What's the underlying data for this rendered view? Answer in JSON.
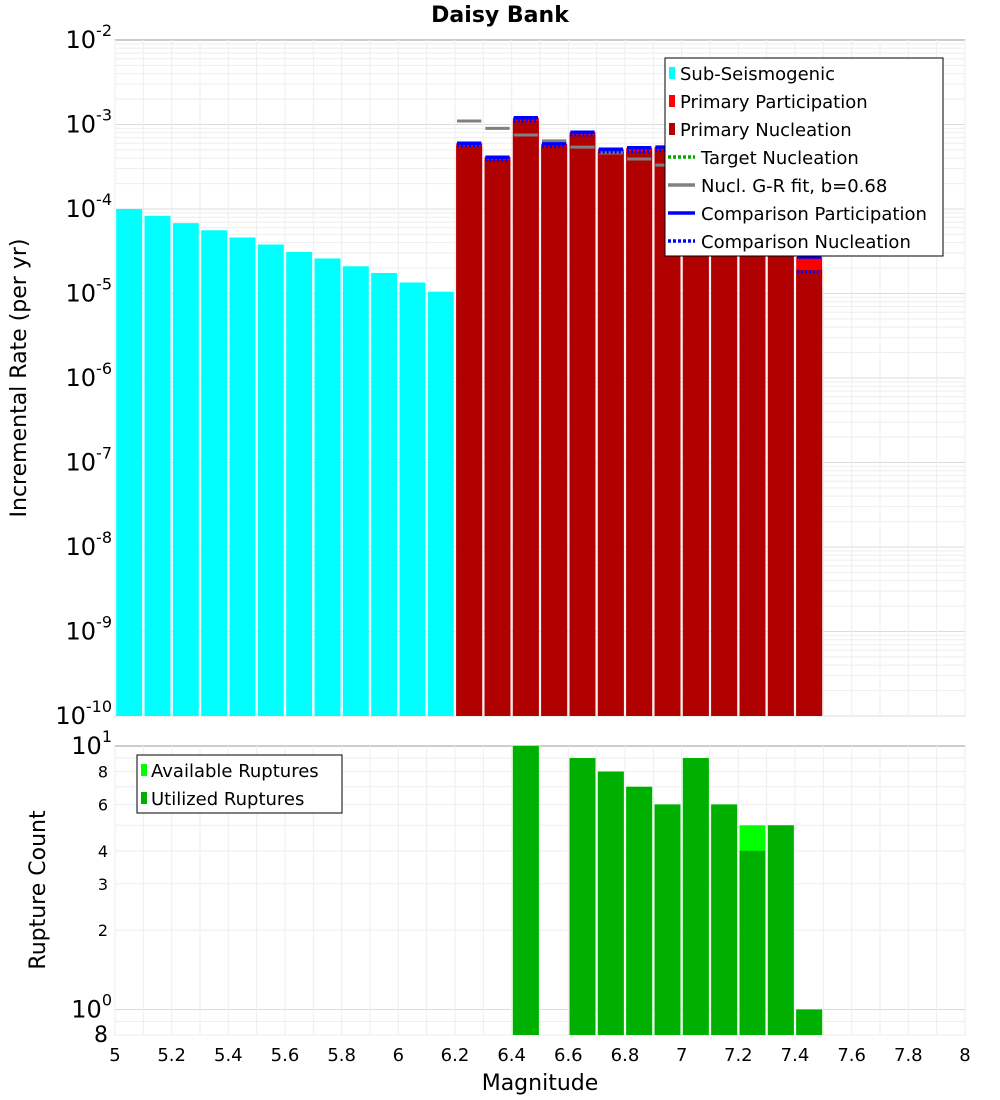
{
  "chart_data": [
    {
      "type": "bar",
      "title": "Daisy Bank",
      "xlabel": "",
      "ylabel": "Incremental Rate (per yr)",
      "yscale": "log",
      "ylim": [
        1e-10,
        0.01
      ],
      "xlim": [
        5.0,
        8.0
      ],
      "y_exponents": [
        -10,
        -9,
        -8,
        -7,
        -6,
        -5,
        -4,
        -3,
        -2
      ],
      "bin_width": 0.1,
      "series": [
        {
          "name": "Sub-Seismogenic",
          "color": "#00ffff",
          "x": [
            5.05,
            5.15,
            5.25,
            5.35,
            5.45,
            5.55,
            5.65,
            5.75,
            5.85,
            5.95,
            6.05,
            6.15
          ],
          "values": [
            0.0001,
            8.3e-05,
            6.8e-05,
            5.6e-05,
            4.6e-05,
            3.8e-05,
            3.1e-05,
            2.6e-05,
            2.1e-05,
            1.75e-05,
            1.35e-05,
            1.05e-05
          ]
        },
        {
          "name": "Primary Participation",
          "color": "#ff0000",
          "x": [
            6.25,
            6.35,
            6.45,
            6.55,
            6.65,
            6.75,
            6.85,
            6.95,
            7.05,
            7.15,
            7.25,
            7.35,
            7.45
          ],
          "values": [
            0.0006,
            0.00041,
            0.0012,
            0.00059,
            0.00081,
            0.00051,
            0.00053,
            0.00054,
            0.00046,
            0.00044,
            0.00036,
            0.00011,
            2.7e-05
          ]
        },
        {
          "name": "Primary Nucleation",
          "color": "#b00000",
          "x": [
            6.25,
            6.35,
            6.45,
            6.55,
            6.65,
            6.75,
            6.85,
            6.95,
            7.05,
            7.15,
            7.25,
            7.35,
            7.45
          ],
          "values": [
            0.00056,
            0.00038,
            0.0011,
            0.00055,
            0.00075,
            0.00047,
            0.00048,
            0.00049,
            0.00041,
            0.00039,
            0.00032,
            9.5e-05,
            1.9e-05
          ]
        },
        {
          "name": "Target Nucleation",
          "color": "#00aa00",
          "x": [],
          "values": []
        },
        {
          "name": "Nucl. G-R fit, b=0.68",
          "color": "#808080",
          "x": [
            6.25,
            6.35,
            6.45,
            6.55,
            6.65,
            6.75,
            6.85,
            6.95,
            7.05,
            7.15,
            7.25,
            7.35,
            7.45
          ],
          "values": [
            0.0011,
            0.0009,
            0.00075,
            0.00064,
            0.00054,
            0.00046,
            0.00039,
            0.00033,
            0.00028,
            0.00024,
            0.0002,
            0.00017,
            0.000145
          ]
        },
        {
          "name": "Comparison Participation",
          "color": "#0000ff",
          "x": [
            6.25,
            6.35,
            6.45,
            6.55,
            6.65,
            6.75,
            6.85,
            6.95,
            7.05,
            7.15,
            7.25,
            7.35,
            7.45
          ],
          "values": [
            0.0006,
            0.00041,
            0.0012,
            0.00059,
            0.00081,
            0.00051,
            0.00053,
            0.00054,
            0.00046,
            0.00044,
            0.00036,
            0.00011,
            2.7e-05
          ]
        },
        {
          "name": "Comparison Nucleation",
          "color": "#0000ff",
          "x": [
            6.25,
            6.35,
            6.45,
            6.55,
            6.65,
            6.75,
            6.85,
            6.95,
            7.05,
            7.15,
            7.25,
            7.35,
            7.45
          ],
          "values": [
            0.00056,
            0.00038,
            0.0011,
            0.00055,
            0.00075,
            0.00047,
            0.00048,
            0.00049,
            0.00041,
            0.00039,
            0.00032,
            9.5e-05,
            1.8e-05
          ]
        }
      ],
      "legend": [
        {
          "label": "Sub-Seismogenic",
          "color": "#00ffff",
          "style": "box"
        },
        {
          "label": "Primary Participation",
          "color": "#ff0000",
          "style": "box"
        },
        {
          "label": "Primary Nucleation",
          "color": "#b00000",
          "style": "box"
        },
        {
          "label": "Target Nucleation",
          "color": "#00aa00",
          "style": "dotted"
        },
        {
          "label": "Nucl. G-R fit, b=0.68",
          "color": "#808080",
          "style": "solid"
        },
        {
          "label": "Comparison Participation",
          "color": "#0000ff",
          "style": "solid"
        },
        {
          "label": "Comparison Nucleation",
          "color": "#0000ff",
          "style": "dotted"
        }
      ],
      "legend_position": "top-right"
    },
    {
      "type": "bar",
      "title": "",
      "xlabel": "Magnitude",
      "ylabel": "Rupture Count",
      "yscale": "log",
      "ylim": [
        0.8,
        10
      ],
      "xlim": [
        5.0,
        8.0
      ],
      "x_ticks": [
        "5",
        "5.2",
        "5.4",
        "5.6",
        "5.8",
        "6",
        "6.2",
        "6.4",
        "6.6",
        "6.8",
        "7",
        "7.2",
        "7.4",
        "7.6",
        "7.8",
        "8"
      ],
      "y_ticks_minor": [
        "2",
        "3",
        "4",
        "6",
        "8"
      ],
      "y_bottom_label": "8",
      "series": [
        {
          "name": "Available Ruptures",
          "color": "#00ff00",
          "x": [
            6.45,
            6.65,
            6.75,
            6.85,
            6.95,
            7.05,
            7.15,
            7.25,
            7.35,
            7.45
          ],
          "values": [
            10,
            9,
            8,
            7,
            6,
            9,
            6,
            5,
            5,
            1
          ]
        },
        {
          "name": "Utilized Ruptures",
          "color": "#00b000",
          "x": [
            6.45,
            6.65,
            6.75,
            6.85,
            6.95,
            7.05,
            7.15,
            7.25,
            7.35,
            7.45
          ],
          "values": [
            10,
            9,
            8,
            7,
            6,
            9,
            6,
            4,
            5,
            1
          ]
        }
      ],
      "legend": [
        {
          "label": "Available Ruptures",
          "color": "#00ff00",
          "style": "box"
        },
        {
          "label": "Utilized Ruptures",
          "color": "#00b000",
          "style": "box"
        }
      ],
      "legend_position": "top-left"
    }
  ]
}
